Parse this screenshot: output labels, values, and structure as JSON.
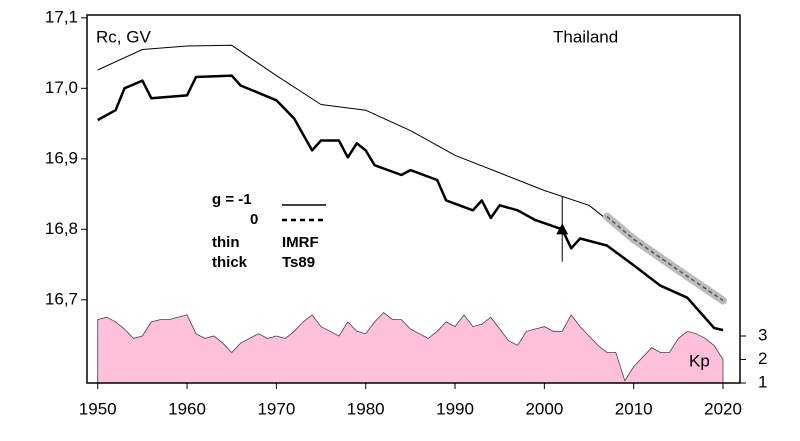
{
  "chart_data": {
    "type": "line",
    "annotations": [
      "Rc, GV",
      "Thailand",
      "Kp"
    ],
    "legend": {
      "g_label": "g  = -1",
      "g0_label": "0",
      "thin": "thin",
      "thin_model": "IMRF",
      "thick": "thick",
      "thick_model": "Ts89"
    },
    "xlim": [
      1948.8,
      2021.9
    ],
    "xticks": [
      1950,
      1960,
      1970,
      1980,
      1990,
      2000,
      2010,
      2020
    ],
    "ylim": [
      16.582,
      17.104
    ],
    "yticks": [
      {
        "value": 16.7,
        "label": "16,7"
      },
      {
        "value": 16.8,
        "label": "16,8"
      },
      {
        "value": 16.9,
        "label": "16,9"
      },
      {
        "value": 17.0,
        "label": "17,0"
      },
      {
        "value": 17.1,
        "label": "17,1"
      }
    ],
    "y2lim": [
      1,
      16.66
    ],
    "y2ticks": [
      1,
      2,
      3
    ],
    "series": [
      {
        "name": "thin",
        "color": "#000000",
        "width": 1,
        "x": [
          1950,
          1955,
          1960,
          1965,
          1970,
          1975,
          1980,
          1985,
          1990,
          1995,
          2000,
          2005,
          2010,
          2015,
          2020
        ],
        "values": [
          17.026,
          17.055,
          17.06,
          17.061,
          17.018,
          16.977,
          16.969,
          16.94,
          16.905,
          16.88,
          16.855,
          16.834,
          16.784,
          16.742,
          16.7
        ]
      },
      {
        "name": "thick",
        "color": "#000000",
        "width": 2.5,
        "x": [
          1950,
          1952,
          1953,
          1955,
          1956,
          1960,
          1961,
          1965,
          1966,
          1970,
          1972,
          1974,
          1975,
          1977,
          1978,
          1979,
          1980,
          1981,
          1984,
          1985,
          1988,
          1989,
          1992,
          1993,
          1994,
          1995,
          1997,
          1999,
          2002,
          2003,
          2004,
          2007,
          2010,
          2013,
          2016,
          2019,
          2020
        ],
        "values": [
          16.955,
          16.969,
          17.0,
          17.011,
          16.986,
          16.99,
          17.016,
          17.018,
          17.004,
          16.983,
          16.957,
          16.912,
          16.926,
          16.926,
          16.902,
          16.922,
          16.912,
          16.891,
          16.877,
          16.884,
          16.87,
          16.841,
          16.827,
          16.841,
          16.816,
          16.834,
          16.827,
          16.813,
          16.8,
          16.773,
          16.787,
          16.777,
          16.749,
          16.72,
          16.703,
          16.66,
          16.657
        ]
      },
      {
        "name": "g0",
        "color": "#555555",
        "width": 1.5,
        "dashed": true,
        "x": [
          2007,
          2010,
          2015,
          2020
        ],
        "values": [
          16.818,
          16.786,
          16.742,
          16.699
        ]
      },
      {
        "name": "Kp",
        "color": "#ffc0dc",
        "axis": "y2",
        "area": true,
        "x": [
          1950,
          1951,
          1952,
          1953,
          1954,
          1955,
          1956,
          1957,
          1958,
          1959,
          1960,
          1961,
          1962,
          1963,
          1964,
          1965,
          1966,
          1967,
          1968,
          1969,
          1970,
          1971,
          1972,
          1973,
          1974,
          1975,
          1976,
          1977,
          1978,
          1979,
          1980,
          1981,
          1982,
          1983,
          1984,
          1985,
          1986,
          1987,
          1988,
          1989,
          1990,
          1991,
          1992,
          1993,
          1994,
          1995,
          1996,
          1997,
          1998,
          1999,
          2000,
          2001,
          2002,
          2003,
          2004,
          2005,
          2006,
          2007,
          2008,
          2009,
          2010,
          2011,
          2012,
          2013,
          2014,
          2015,
          2016,
          2017,
          2018,
          2019,
          2020
        ],
        "values": [
          3.7,
          3.8,
          3.6,
          3.3,
          2.9,
          3.0,
          3.6,
          3.7,
          3.7,
          3.8,
          3.9,
          3.1,
          2.9,
          3.0,
          2.7,
          2.3,
          2.7,
          2.9,
          3.1,
          2.9,
          3.0,
          2.9,
          3.2,
          3.6,
          3.9,
          3.4,
          3.2,
          3.0,
          3.6,
          3.2,
          3.1,
          3.6,
          4.0,
          3.7,
          3.7,
          3.3,
          3.1,
          2.9,
          3.2,
          3.6,
          3.4,
          3.9,
          3.4,
          3.5,
          3.8,
          3.3,
          2.8,
          2.6,
          3.2,
          3.3,
          3.4,
          3.2,
          3.2,
          3.9,
          3.4,
          3.0,
          2.6,
          2.3,
          2.3,
          1.1,
          1.7,
          2.1,
          2.5,
          2.3,
          2.3,
          2.9,
          3.2,
          3.1,
          2.9,
          2.6,
          2.0
        ]
      }
    ],
    "marker": {
      "x": 2002,
      "y": 16.8,
      "error": 0.046
    }
  }
}
